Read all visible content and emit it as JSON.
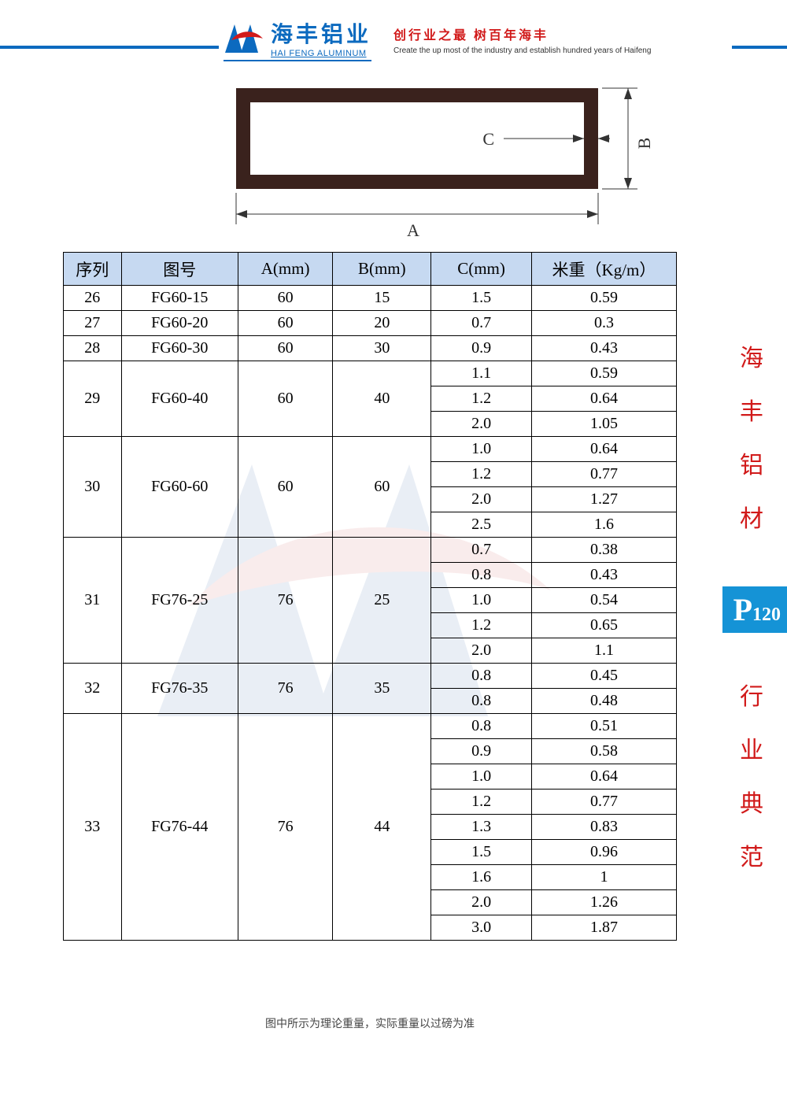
{
  "header": {
    "company_cn": "海丰铝业",
    "company_en": "HAI FENG ALUMINUM",
    "slogan_cn": "创行业之最  树百年海丰",
    "slogan_en": "Create the up most of the industry and establish hundred years of Haifeng"
  },
  "colors": {
    "brand_blue": "#0c6abf",
    "light_blue": "#1593d6",
    "red": "#d11a1a",
    "header_row_bg": "#c6d9f1",
    "border": "#000000",
    "tube_frame": "#3a221d"
  },
  "diagram": {
    "label_A": "A",
    "label_B": "B",
    "label_C": "C"
  },
  "table": {
    "headers": [
      "序列",
      "图号",
      "A(mm)",
      "B(mm)",
      "C(mm)",
      "米重（Kg/m）"
    ],
    "groups": [
      {
        "seq": "26",
        "code": "FG60-15",
        "a": "60",
        "b": "15",
        "variants": [
          {
            "c": "1.5",
            "w": "0.59"
          }
        ]
      },
      {
        "seq": "27",
        "code": "FG60-20",
        "a": "60",
        "b": "20",
        "variants": [
          {
            "c": "0.7",
            "w": "0.3"
          }
        ]
      },
      {
        "seq": "28",
        "code": "FG60-30",
        "a": "60",
        "b": "30",
        "variants": [
          {
            "c": "0.9",
            "w": "0.43"
          }
        ]
      },
      {
        "seq": "29",
        "code": "FG60-40",
        "a": "60",
        "b": "40",
        "variants": [
          {
            "c": "1.1",
            "w": "0.59"
          },
          {
            "c": "1.2",
            "w": "0.64"
          },
          {
            "c": "2.0",
            "w": "1.05"
          }
        ]
      },
      {
        "seq": "30",
        "code": "FG60-60",
        "a": "60",
        "b": "60",
        "variants": [
          {
            "c": "1.0",
            "w": "0.64"
          },
          {
            "c": "1.2",
            "w": "0.77"
          },
          {
            "c": "2.0",
            "w": "1.27"
          },
          {
            "c": "2.5",
            "w": "1.6"
          }
        ]
      },
      {
        "seq": "31",
        "code": "FG76-25",
        "a": "76",
        "b": "25",
        "variants": [
          {
            "c": "0.7",
            "w": "0.38"
          },
          {
            "c": "0.8",
            "w": "0.43"
          },
          {
            "c": "1.0",
            "w": "0.54"
          },
          {
            "c": "1.2",
            "w": "0.65"
          },
          {
            "c": "2.0",
            "w": "1.1"
          }
        ]
      },
      {
        "seq": "32",
        "code": "FG76-35",
        "a": "76",
        "b": "35",
        "variants": [
          {
            "c": "0.8",
            "w": "0.45"
          },
          {
            "c": "0.8",
            "w": "0.48"
          }
        ]
      },
      {
        "seq": "33",
        "code": "FG76-44",
        "a": "76",
        "b": "44",
        "variants": [
          {
            "c": "0.8",
            "w": "0.51"
          },
          {
            "c": "0.9",
            "w": "0.58"
          },
          {
            "c": "1.0",
            "w": "0.64"
          },
          {
            "c": "1.2",
            "w": "0.77"
          },
          {
            "c": "1.3",
            "w": "0.83"
          },
          {
            "c": "1.5",
            "w": "0.96"
          },
          {
            "c": "1.6",
            "w": "1"
          },
          {
            "c": "2.0",
            "w": "1.26"
          },
          {
            "c": "3.0",
            "w": "1.87"
          }
        ]
      }
    ]
  },
  "footnote": "图中所示为理论重量，实际重量以过磅为准",
  "side": {
    "title1": [
      "海",
      "丰",
      "铝",
      "材"
    ],
    "title2": [
      "行",
      "业",
      "典",
      "范"
    ],
    "page_P": "P",
    "page_num": "120"
  }
}
